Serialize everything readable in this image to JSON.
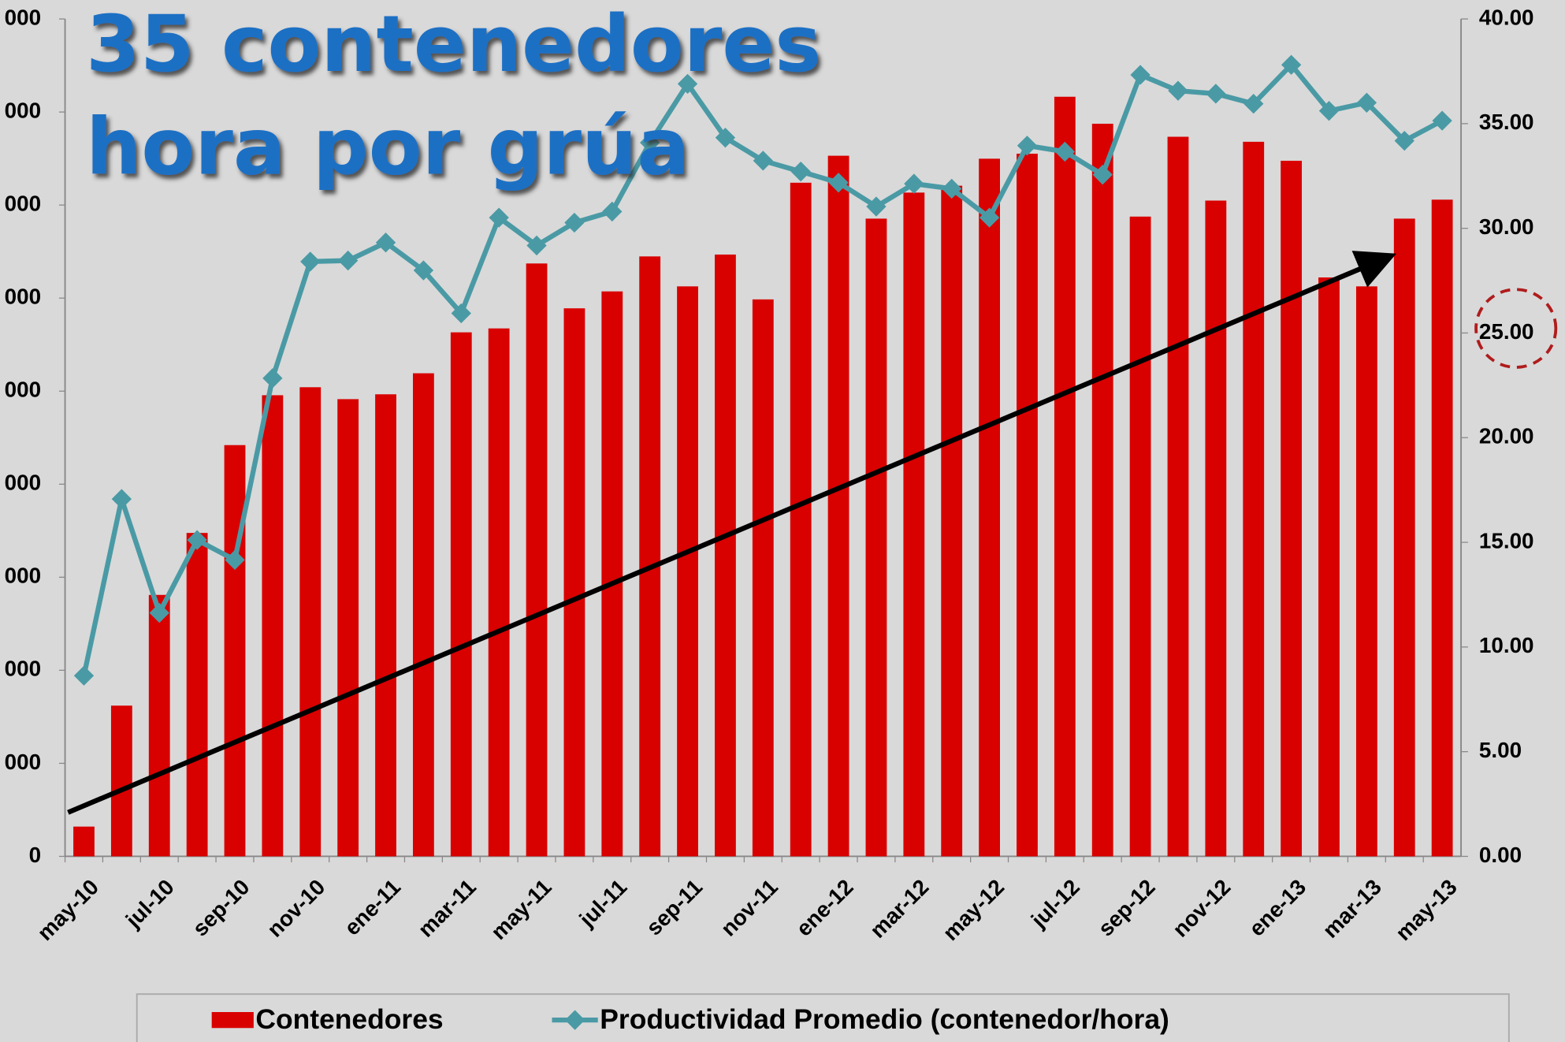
{
  "chart_data": {
    "type": "bar-line",
    "annotation": [
      "35 contenedores",
      "hora por grúa"
    ],
    "categories": [
      "may-10",
      null,
      "jul-10",
      null,
      "sep-10",
      null,
      "nov-10",
      null,
      "ene-11",
      null,
      "mar-11",
      null,
      "may-11",
      null,
      "jul-11",
      null,
      "sep-11",
      null,
      "nov-11",
      null,
      "ene-12",
      null,
      "mar-12",
      null,
      "may-12",
      null,
      "jul-12",
      null,
      "sep-12",
      null,
      "nov-12",
      null,
      "ene-13",
      null,
      "mar-13",
      null,
      "may-13"
    ],
    "series": [
      {
        "name": "Contenedores",
        "type": "bar",
        "color": "#d90000",
        "axis": "y",
        "values": [
          1600,
          8100,
          14050,
          17380,
          22100,
          24780,
          25210,
          24570,
          24830,
          25960,
          28160,
          28370,
          31860,
          29450,
          30360,
          32240,
          30630,
          32340,
          29930,
          36200,
          37650,
          34270,
          35670,
          36040,
          37490,
          37760,
          40820,
          39370,
          34380,
          38670,
          35240,
          38400,
          37380,
          31110,
          30630,
          34270,
          35290
        ]
      },
      {
        "name": "Productividad Promedio (contenedor/hora)",
        "type": "line",
        "color": "#4a9aa5",
        "axis": "y2",
        "values": [
          8.63,
          17.07,
          11.63,
          15.11,
          14.16,
          22.84,
          28.41,
          28.46,
          29.32,
          27.99,
          25.94,
          30.51,
          29.18,
          30.27,
          30.8,
          34.09,
          36.9,
          34.33,
          33.23,
          32.71,
          32.18,
          31.04,
          32.13,
          31.89,
          30.51,
          33.95,
          33.66,
          32.56,
          37.33,
          36.57,
          36.43,
          35.95,
          37.81,
          35.61,
          36.0,
          34.18,
          35.14
        ]
      }
    ],
    "ylim": [
      0,
      45000
    ],
    "yticks": [
      0,
      {
        "value": 5000,
        "label": "000"
      },
      {
        "value": 10000,
        "label": "000"
      },
      {
        "value": 15000,
        "label": "000"
      },
      {
        "value": 20000,
        "label": "000"
      },
      {
        "value": 25000,
        "label": "000"
      },
      {
        "value": 30000,
        "label": "000"
      },
      {
        "value": 35000,
        "label": "000"
      },
      {
        "value": 40000,
        "label": "000"
      },
      {
        "value": 45000,
        "label": "000"
      }
    ],
    "y2lim": [
      0,
      40
    ],
    "y2ticks": [
      {
        "value": 0,
        "label": "0.00"
      },
      {
        "value": 5,
        "label": "5.00"
      },
      {
        "value": 10,
        "label": "10.00"
      },
      {
        "value": 15,
        "label": "15.00"
      },
      {
        "value": 20,
        "label": "20.00"
      },
      {
        "value": 25,
        "label": "25.00"
      },
      {
        "value": 30,
        "label": "30.00"
      },
      {
        "value": 35,
        "label": "35.00"
      },
      {
        "value": 40,
        "label": "40.00"
      }
    ],
    "legend": "bottom"
  }
}
